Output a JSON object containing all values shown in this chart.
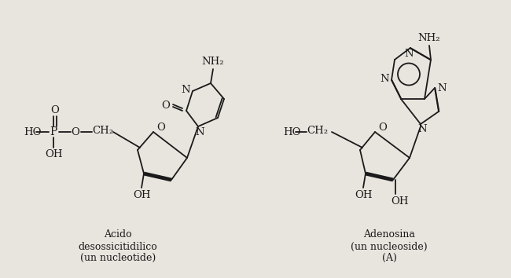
{
  "bg_color": "#e8e4de",
  "line_color": "#1a1a1a",
  "text_color": "#1a1a1a",
  "figsize": [
    6.5,
    3.54
  ],
  "dpi": 100,
  "label1_lines": [
    "Acido",
    "desossicitidilico",
    "(un nucleotide)"
  ],
  "label2_lines": [
    "Adenosina",
    "(un nucleoside)",
    "(A)"
  ]
}
